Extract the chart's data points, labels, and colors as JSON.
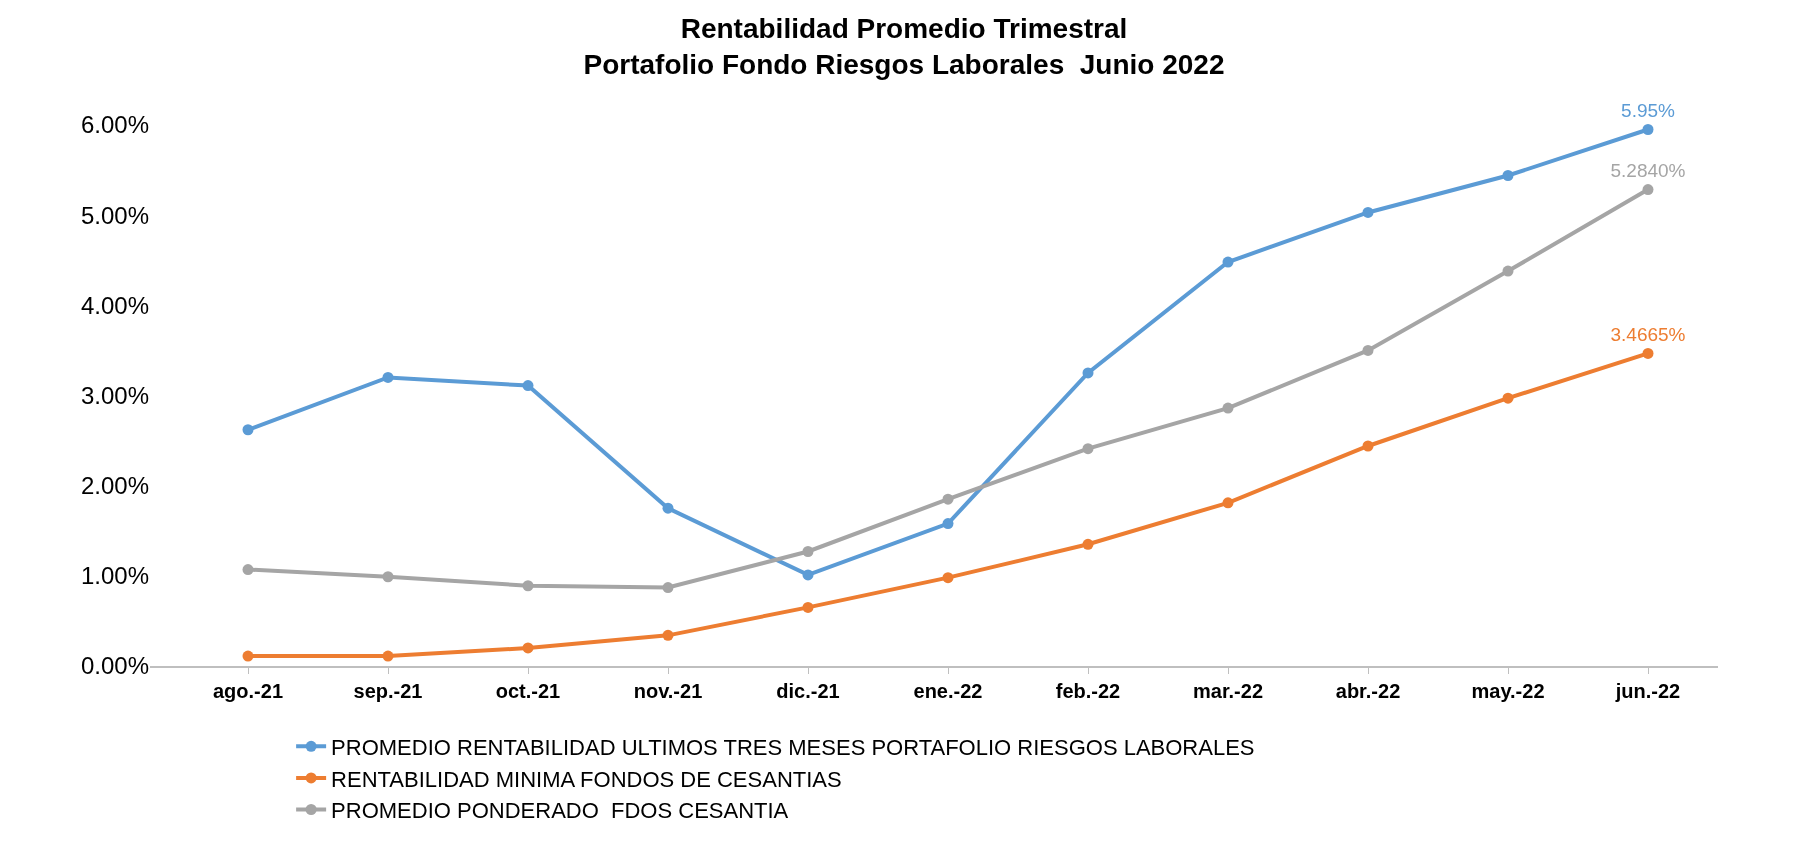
{
  "chart_data": {
    "type": "line",
    "title": "Rentabilidad Promedio Trimestral\nPortafolio Fondo Riesgos Laborales  Junio 2022",
    "categories": [
      "ago.-21",
      "sep.-21",
      "oct.-21",
      "nov.-21",
      "dic.-21",
      "ene.-22",
      "feb.-22",
      "mar.-22",
      "abr.-22",
      "may.-22",
      "jun.-22"
    ],
    "series": [
      {
        "name": "PROMEDIO RENTABILIDAD ULTIMOS TRES MESES PORTAFOLIO RIESGOS LABORALES",
        "color": "#5b9bd5",
        "values": [
          2.62,
          3.2,
          3.11,
          1.75,
          1.01,
          1.58,
          3.25,
          4.48,
          5.03,
          5.44,
          5.95
        ],
        "value_labels": [
          null,
          null,
          null,
          null,
          null,
          null,
          null,
          null,
          null,
          null,
          "5.95%"
        ]
      },
      {
        "name": "RENTABILIDAD MINIMA FONDOS DE CESANTIAS",
        "color": "#ed7d31",
        "values": [
          0.11,
          0.11,
          0.2,
          0.34,
          0.65,
          0.98,
          1.35,
          1.81,
          2.44,
          2.97,
          3.4665
        ],
        "value_labels": [
          null,
          null,
          null,
          null,
          null,
          null,
          null,
          null,
          null,
          null,
          "3.4665%"
        ]
      },
      {
        "name": "PROMEDIO PONDERADO  FDOS CESANTIA",
        "color": "#a5a5a5",
        "values": [
          1.07,
          0.99,
          0.89,
          0.87,
          1.27,
          1.85,
          2.41,
          2.86,
          3.5,
          4.38,
          5.284
        ],
        "value_labels": [
          null,
          null,
          null,
          null,
          null,
          null,
          null,
          null,
          null,
          null,
          "5.2840%"
        ]
      }
    ],
    "ylim": [
      0,
      6
    ],
    "yticks": [
      {
        "value": 0,
        "label": "0.00%"
      },
      {
        "value": 1,
        "label": "1.00%"
      },
      {
        "value": 2,
        "label": "2.00%"
      },
      {
        "value": 3,
        "label": "3.00%"
      },
      {
        "value": 4,
        "label": "4.00%"
      },
      {
        "value": 5,
        "label": "5.00%"
      },
      {
        "value": 6,
        "label": "6.00%"
      }
    ],
    "legend": "bottom",
    "marker": "circle",
    "line_style": "solid"
  }
}
